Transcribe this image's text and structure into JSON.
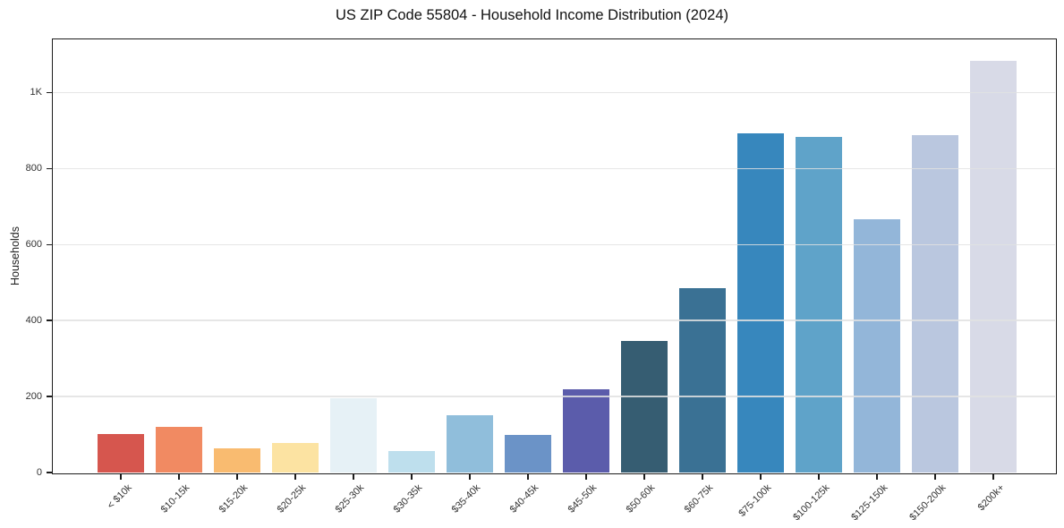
{
  "title": "US ZIP Code 55804 - Household Income Distribution (2024)",
  "chart_data": {
    "type": "bar",
    "title": "US ZIP Code 55804 - Household Income Distribution (2024)",
    "xlabel": "",
    "ylabel": "Households",
    "ylim": [
      0,
      1140
    ],
    "grid": "horizontal",
    "legend": "none",
    "background": "#ffffff",
    "categories": [
      "< $10k",
      "$10-15k",
      "$15-20k",
      "$20-25k",
      "$25-30k",
      "$30-35k",
      "$35-40k",
      "$40-45k",
      "$45-50k",
      "$50-60k",
      "$60-75k",
      "$75-100k",
      "$100-125k",
      "$125-150k",
      "$150-200k",
      "$200k+"
    ],
    "values": [
      102,
      120,
      63,
      77,
      195,
      57,
      150,
      98,
      220,
      347,
      486,
      892,
      884,
      666,
      889,
      1083
    ],
    "bar_colors": [
      "#d6564e",
      "#f18a62",
      "#f9bb70",
      "#fce3a2",
      "#e6f1f6",
      "#bedfed",
      "#90bedb",
      "#6b93c7",
      "#5b5cab",
      "#365d72",
      "#3a7194",
      "#3787bd",
      "#5fa3c9",
      "#93b6d9",
      "#bac7df",
      "#d8dae7"
    ],
    "yticks": [
      {
        "value": 0,
        "label": "0"
      },
      {
        "value": 200,
        "label": "200"
      },
      {
        "value": 400,
        "label": "400"
      },
      {
        "value": 600,
        "label": "600"
      },
      {
        "value": 800,
        "label": "800"
      },
      {
        "value": 1000,
        "label": "1K"
      }
    ],
    "colors": {
      "grid": "#e2e2e2",
      "spine": "#1c1c1c",
      "tick_label": "#333333",
      "title": "#111111"
    }
  }
}
